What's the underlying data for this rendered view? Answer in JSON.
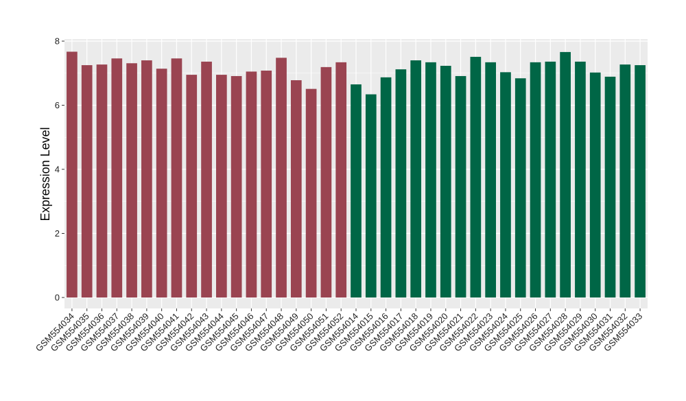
{
  "chart_data": {
    "type": "bar",
    "title": "",
    "xlabel": "",
    "ylabel": "Expression Level",
    "ylim": [
      0,
      8
    ],
    "yticks": [
      0,
      2,
      4,
      6,
      8
    ],
    "grid": true,
    "legend": "none",
    "colors": {
      "group1": "#9a4451",
      "group2": "#006646",
      "panel": "#ebebeb",
      "grid": "#ffffff"
    },
    "categories": [
      "GSM554034",
      "GSM554035",
      "GSM554036",
      "GSM554037",
      "GSM554038",
      "GSM554039",
      "GSM554040",
      "GSM554041",
      "GSM554042",
      "GSM554043",
      "GSM554044",
      "GSM554045",
      "GSM554046",
      "GSM554047",
      "GSM554048",
      "GSM554049",
      "GSM554050",
      "GSM554051",
      "GSM554052",
      "GSM554014",
      "GSM554015",
      "GSM554016",
      "GSM554017",
      "GSM554018",
      "GSM554019",
      "GSM554020",
      "GSM554021",
      "GSM554022",
      "GSM554023",
      "GSM554024",
      "GSM554025",
      "GSM554026",
      "GSM554027",
      "GSM554028",
      "GSM554029",
      "GSM554030",
      "GSM554031",
      "GSM554032",
      "GSM554033"
    ],
    "values": [
      7.67,
      7.25,
      7.27,
      7.46,
      7.31,
      7.4,
      7.14,
      7.46,
      6.95,
      7.36,
      6.95,
      6.91,
      7.05,
      7.08,
      7.48,
      6.78,
      6.51,
      7.19,
      7.34,
      6.65,
      6.34,
      6.87,
      7.12,
      7.4,
      7.34,
      7.23,
      6.91,
      7.51,
      7.34,
      7.03,
      6.84,
      7.34,
      7.36,
      7.66,
      7.36,
      7.02,
      6.89,
      7.27,
      7.25
    ],
    "groups": [
      1,
      1,
      1,
      1,
      1,
      1,
      1,
      1,
      1,
      1,
      1,
      1,
      1,
      1,
      1,
      1,
      1,
      1,
      1,
      2,
      2,
      2,
      2,
      2,
      2,
      2,
      2,
      2,
      2,
      2,
      2,
      2,
      2,
      2,
      2,
      2,
      2,
      2,
      2
    ]
  }
}
